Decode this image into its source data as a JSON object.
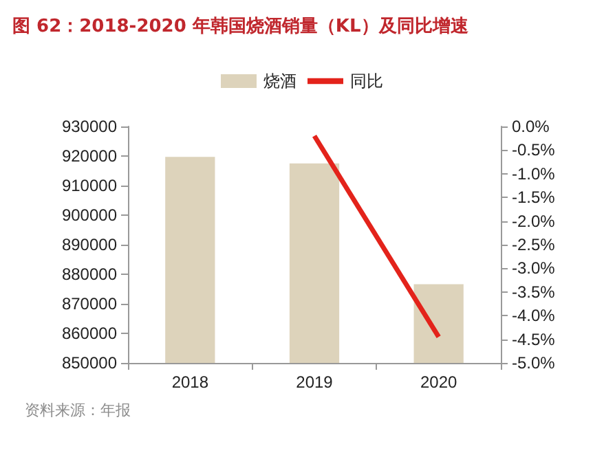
{
  "chart_data": {
    "type": "bar",
    "title": "图 62：2018-2020 年韩国烧酒销量（KL）及同比增速",
    "categories": [
      "2018",
      "2019",
      "2020"
    ],
    "series": [
      {
        "name": "烧酒",
        "color": "#ddd3bb",
        "values": [
          919700,
          917500,
          876600
        ]
      },
      {
        "name": "同比",
        "type": "line",
        "axis": "y2",
        "color": "#e3231b",
        "values": [
          null,
          -0.2,
          -4.45
        ],
        "marker": "none"
      }
    ],
    "ylim": [
      850000,
      930000
    ],
    "yticks": [
      850000,
      860000,
      870000,
      880000,
      890000,
      900000,
      910000,
      920000,
      930000
    ],
    "y2lim": [
      -5,
      0
    ],
    "y2ticks": [
      {
        "value": -5,
        "label": "-5.0%"
      },
      {
        "value": -4.5,
        "label": "-4.5%"
      },
      {
        "value": -4,
        "label": "-4.0%"
      },
      {
        "value": -3.5,
        "label": "-3.5%"
      },
      {
        "value": -3,
        "label": "-3.0%"
      },
      {
        "value": -2.5,
        "label": "-2.5%"
      },
      {
        "value": -2,
        "label": "-2.0%"
      },
      {
        "value": -1.5,
        "label": "-1.5%"
      },
      {
        "value": -1,
        "label": "-1.0%"
      },
      {
        "value": -0.5,
        "label": "-0.5%"
      },
      {
        "value": 0,
        "label": "0.0%"
      }
    ],
    "grid": false,
    "legend": "top",
    "annotations": [
      "资料来源：年报"
    ]
  }
}
